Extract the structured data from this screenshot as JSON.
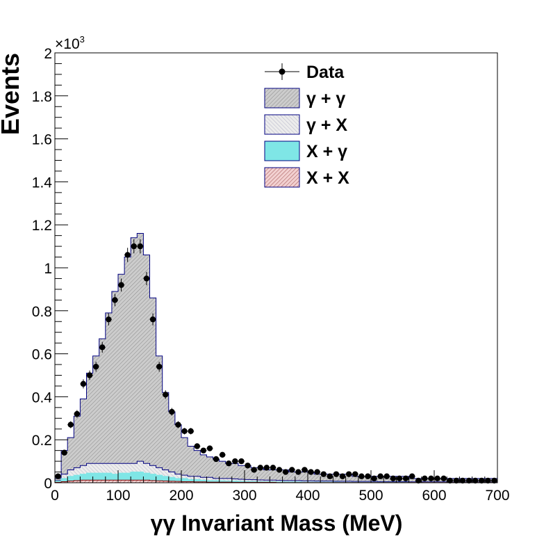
{
  "chart_data": {
    "type": "histogram",
    "xlabel": "γγ Invariant Mass (MeV)",
    "ylabel": "Events",
    "y_exponent": "×10",
    "y_exponent_power": "3",
    "xlim": [
      0,
      700
    ],
    "ylim": [
      0,
      2
    ],
    "x_ticks": [
      0,
      100,
      200,
      300,
      400,
      500,
      600,
      700
    ],
    "y_ticks": [
      0,
      0.2,
      0.4,
      0.6,
      0.8,
      1,
      1.2,
      1.4,
      1.6,
      1.8,
      2
    ],
    "x_tick_labels": [
      "0",
      "100",
      "200",
      "300",
      "400",
      "500",
      "600",
      "700"
    ],
    "y_tick_labels": [
      "0",
      "0.2",
      "0.4",
      "0.6",
      "0.8",
      "1",
      "1.2",
      "1.4",
      "1.6",
      "1.8",
      "2"
    ],
    "bin_width": 10,
    "legend_position": "top-center",
    "legend": [
      {
        "label": "Data",
        "style": "marker"
      },
      {
        "label": "γ + γ",
        "style": "hatch-gray"
      },
      {
        "label": "γ + X",
        "style": "hatch-light-navy"
      },
      {
        "label": "X + γ",
        "style": "cyan"
      },
      {
        "label": "X + X",
        "style": "hatch-maroon"
      }
    ],
    "colors": {
      "gg_fill": "#cccccc",
      "gg_line": "#000080",
      "gx_line": "#000080",
      "xg_fill": "#7fe6e6",
      "xx_line": "#800000",
      "data": "#000000"
    },
    "series": [
      {
        "name": "Data",
        "x": [
          5,
          15,
          25,
          35,
          45,
          55,
          65,
          75,
          85,
          95,
          105,
          115,
          125,
          135,
          145,
          155,
          165,
          175,
          185,
          195,
          205,
          215,
          225,
          235,
          245,
          255,
          265,
          275,
          285,
          295,
          305,
          315,
          325,
          335,
          345,
          355,
          365,
          375,
          385,
          395,
          405,
          415,
          425,
          435,
          445,
          455,
          465,
          475,
          485,
          495,
          505,
          515,
          525,
          535,
          545,
          555,
          565,
          575,
          585,
          595,
          605,
          615,
          625,
          635,
          645,
          655,
          665,
          675,
          685,
          695
        ],
        "values": [
          0.03,
          0.14,
          0.27,
          0.32,
          0.46,
          0.5,
          0.54,
          0.63,
          0.76,
          0.85,
          0.92,
          1.06,
          1.1,
          1.1,
          0.95,
          0.76,
          0.54,
          0.41,
          0.33,
          0.27,
          0.24,
          0.24,
          0.17,
          0.15,
          0.16,
          0.11,
          0.13,
          0.09,
          0.1,
          0.1,
          0.08,
          0.06,
          0.07,
          0.07,
          0.07,
          0.06,
          0.05,
          0.06,
          0.05,
          0.06,
          0.05,
          0.05,
          0.04,
          0.03,
          0.04,
          0.03,
          0.04,
          0.04,
          0.03,
          0.03,
          0.02,
          0.03,
          0.03,
          0.02,
          0.02,
          0.02,
          0.03,
          0.01,
          0.02,
          0.02,
          0.02,
          0.02,
          0.01,
          0.01,
          0.01,
          0.01,
          0.01,
          0.01,
          0.01,
          0.01
        ],
        "errors": [
          0.006,
          0.012,
          0.016,
          0.018,
          0.021,
          0.022,
          0.023,
          0.025,
          0.028,
          0.029,
          0.03,
          0.033,
          0.033,
          0.033,
          0.031,
          0.028,
          0.023,
          0.02,
          0.018,
          0.016,
          0.015,
          0.015,
          0.013,
          0.012,
          0.013,
          0.01,
          0.011,
          0.009,
          0.01,
          0.01,
          0.009,
          0.008,
          0.008,
          0.008,
          0.008,
          0.008,
          0.007,
          0.008,
          0.007,
          0.008,
          0.007,
          0.007,
          0.006,
          0.005,
          0.006,
          0.005,
          0.006,
          0.006,
          0.005,
          0.005,
          0.004,
          0.005,
          0.005,
          0.004,
          0.004,
          0.004,
          0.005,
          0.003,
          0.004,
          0.004,
          0.004,
          0.004,
          0.003,
          0.003,
          0.003,
          0.003,
          0.003,
          0.003,
          0.003,
          0.003
        ]
      },
      {
        "name": "γ + γ",
        "stack_total": true,
        "values": [
          0.02,
          0.15,
          0.21,
          0.31,
          0.39,
          0.51,
          0.59,
          0.67,
          0.79,
          0.89,
          0.97,
          1.05,
          1.14,
          1.16,
          1.06,
          0.86,
          0.59,
          0.42,
          0.33,
          0.27,
          0.21,
          0.17,
          0.15,
          0.13,
          0.12,
          0.11,
          0.1,
          0.09,
          0.09,
          0.08,
          0.08,
          0.07,
          0.07,
          0.06,
          0.06,
          0.06,
          0.06,
          0.05,
          0.05,
          0.05,
          0.05,
          0.04,
          0.04,
          0.04,
          0.04,
          0.04,
          0.04,
          0.03,
          0.03,
          0.03,
          0.03,
          0.03,
          0.03,
          0.03,
          0.03,
          0.03,
          0.02,
          0.02,
          0.02,
          0.02,
          0.02,
          0.02,
          0.02,
          0.02,
          0.02,
          0.02,
          0.02,
          0.02,
          0.02,
          0.02
        ]
      },
      {
        "name": "γ + X",
        "values": [
          0.01,
          0.04,
          0.06,
          0.07,
          0.08,
          0.09,
          0.09,
          0.09,
          0.09,
          0.09,
          0.09,
          0.09,
          0.09,
          0.1,
          0.09,
          0.08,
          0.07,
          0.06,
          0.05,
          0.04,
          0.035,
          0.03,
          0.03,
          0.025,
          0.025,
          0.02,
          0.02,
          0.02,
          0.018,
          0.016,
          0.015,
          0.014,
          0.013,
          0.012,
          0.012,
          0.011,
          0.01,
          0.01,
          0.01,
          0.009,
          0.009,
          0.008,
          0.008,
          0.008,
          0.007,
          0.007,
          0.007,
          0.006,
          0.006,
          0.006,
          0.006,
          0.005,
          0.005,
          0.005,
          0.005,
          0.005,
          0.004,
          0.004,
          0.004,
          0.004,
          0.004,
          0.004,
          0.003,
          0.003,
          0.003,
          0.003,
          0.003,
          0.003,
          0.003,
          0.003
        ]
      },
      {
        "name": "X + γ",
        "values": [
          0.008,
          0.02,
          0.03,
          0.035,
          0.04,
          0.045,
          0.045,
          0.045,
          0.045,
          0.04,
          0.045,
          0.045,
          0.05,
          0.05,
          0.045,
          0.04,
          0.035,
          0.03,
          0.025,
          0.02,
          0.02,
          0.015,
          0.015,
          0.012,
          0.01,
          0.01,
          0.009,
          0.008,
          0.008,
          0.007,
          0.006,
          0.006,
          0.005,
          0.005,
          0.005,
          0.004,
          0.004,
          0.004,
          0.004,
          0.003,
          0.003,
          0.003,
          0.003,
          0.003,
          0.003,
          0.002,
          0.002,
          0.002,
          0.002,
          0.002,
          0.002,
          0.002,
          0.002,
          0.002,
          0.002,
          0.002,
          0.001,
          0.001,
          0.001,
          0.001,
          0.001,
          0.001,
          0.001,
          0.001,
          0.001,
          0.001,
          0.001,
          0.001,
          0.001,
          0.001
        ]
      },
      {
        "name": "X + X",
        "values": [
          0.002,
          0.005,
          0.008,
          0.01,
          0.012,
          0.012,
          0.012,
          0.012,
          0.012,
          0.012,
          0.012,
          0.012,
          0.012,
          0.012,
          0.012,
          0.01,
          0.009,
          0.008,
          0.007,
          0.006,
          0.005,
          0.005,
          0.004,
          0.004,
          0.003,
          0.003,
          0.003,
          0.003,
          0.002,
          0.002,
          0.002,
          0.002,
          0.002,
          0.002,
          0.002,
          0.001,
          0.001,
          0.001,
          0.001,
          0.001,
          0.001,
          0.001,
          0.001,
          0.001,
          0.001,
          0.001,
          0.001,
          0.001,
          0.001,
          0.001,
          0.001,
          0.001,
          0.001,
          0.001,
          0.001,
          0.001,
          0.001,
          0.001,
          0.001,
          0.001,
          0.001,
          0.001,
          0.001,
          0.001,
          0.001,
          0.001,
          0.001,
          0.001,
          0.001,
          0.001
        ]
      }
    ]
  }
}
